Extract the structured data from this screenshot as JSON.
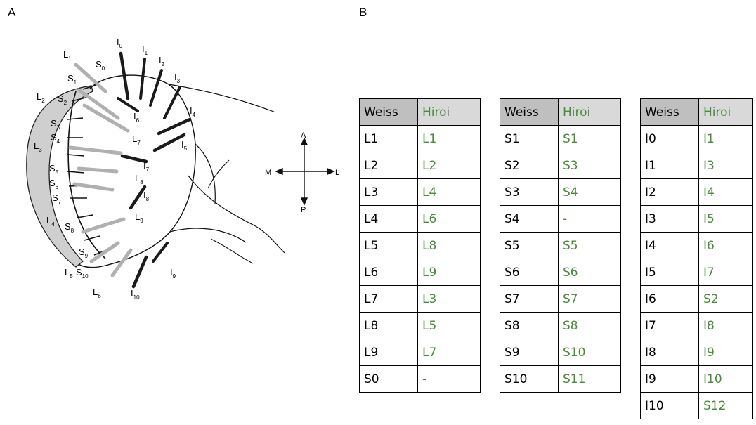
{
  "panels": {
    "a": "A",
    "b": "B"
  },
  "compass": {
    "anterior": "A",
    "posterior": "P",
    "medial": "M",
    "lateral": "L"
  },
  "colors": {
    "hiroi_text": "#4c8a3c",
    "header_weiss_bg": "#bfbfbf",
    "header_hiroi_bg": "#d9d9d9",
    "l_setae": "#b0b0b0",
    "i_setae": "#1a1a1a",
    "shaded_band": "#cfcfcf"
  },
  "diagram_labels": {
    "L": [
      {
        "b": "L",
        "s": "1"
      },
      {
        "b": "L",
        "s": "2"
      },
      {
        "b": "L",
        "s": "3"
      },
      {
        "b": "L",
        "s": "4"
      },
      {
        "b": "L",
        "s": "5"
      },
      {
        "b": "L",
        "s": "6"
      }
    ],
    "S": [
      {
        "b": "S",
        "s": "0"
      },
      {
        "b": "S",
        "s": "1"
      },
      {
        "b": "S",
        "s": "2"
      },
      {
        "b": "S",
        "s": "3"
      },
      {
        "b": "S",
        "s": "4"
      },
      {
        "b": "S",
        "s": "5"
      },
      {
        "b": "S",
        "s": "6"
      },
      {
        "b": "S",
        "s": "7"
      },
      {
        "b": "S",
        "s": "8"
      },
      {
        "b": "S",
        "s": "9"
      },
      {
        "b": "S",
        "s": "10"
      }
    ],
    "I": [
      {
        "b": "I",
        "s": "0"
      },
      {
        "b": "I",
        "s": "1"
      },
      {
        "b": "I",
        "s": "2"
      },
      {
        "b": "I",
        "s": "3"
      },
      {
        "b": "I",
        "s": "4"
      },
      {
        "b": "I",
        "s": "5"
      },
      {
        "b": "I",
        "s": "6"
      },
      {
        "b": "I",
        "s": "7"
      },
      {
        "b": "I",
        "s": "8"
      },
      {
        "b": "I",
        "s": "9"
      },
      {
        "b": "I",
        "s": "10"
      }
    ],
    "L_inner": [
      {
        "b": "L",
        "s": "7"
      },
      {
        "b": "L",
        "s": "8"
      },
      {
        "b": "L",
        "s": "9"
      }
    ]
  },
  "tables": [
    {
      "headers": [
        "Weiss",
        "Hiroi"
      ],
      "rows": [
        [
          "L1",
          "L1"
        ],
        [
          "L2",
          "L2"
        ],
        [
          "L3",
          "L4"
        ],
        [
          "L4",
          "L6"
        ],
        [
          "L5",
          "L8"
        ],
        [
          "L6",
          "L9"
        ],
        [
          "L7",
          "L3"
        ],
        [
          "L8",
          "L5"
        ],
        [
          "L9",
          "L7"
        ],
        [
          "S0",
          "-"
        ]
      ]
    },
    {
      "headers": [
        "Weiss",
        "Hiroi"
      ],
      "rows": [
        [
          "S1",
          "S1"
        ],
        [
          "S2",
          "S3"
        ],
        [
          "S3",
          "S4"
        ],
        [
          "S4",
          "-"
        ],
        [
          "S5",
          "S5"
        ],
        [
          "S6",
          "S6"
        ],
        [
          "S7",
          "S7"
        ],
        [
          "S8",
          "S8"
        ],
        [
          "S9",
          "S10"
        ],
        [
          "S10",
          "S11"
        ]
      ]
    },
    {
      "headers": [
        "Weiss",
        "Hiroi"
      ],
      "rows": [
        [
          "I0",
          "I1"
        ],
        [
          "I1",
          "I3"
        ],
        [
          "I2",
          "I4"
        ],
        [
          "I3",
          "I5"
        ],
        [
          "I4",
          "I6"
        ],
        [
          "I5",
          "I7"
        ],
        [
          "I6",
          "S2"
        ],
        [
          "I7",
          "I8"
        ],
        [
          "I8",
          "I9"
        ],
        [
          "I9",
          "I10"
        ],
        [
          "I10",
          "S12"
        ]
      ]
    }
  ]
}
